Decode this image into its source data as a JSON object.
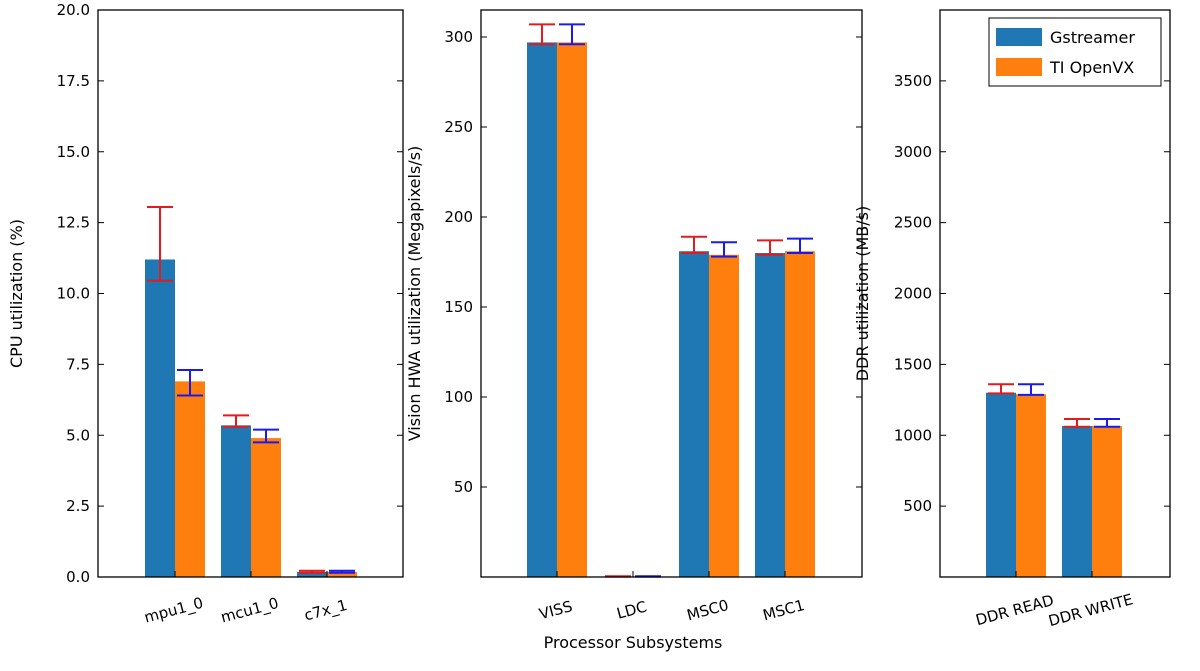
{
  "chart_data": {
    "type": "bar",
    "xlabel": "Processor Subsystems",
    "legend": {
      "placement": "top-right",
      "entries": [
        {
          "name": "Gstreamer",
          "color": "#1f77b4"
        },
        {
          "name": "TI OpenVX",
          "color": "#ff7f0e"
        }
      ]
    },
    "error_bar_colors": {
      "Gstreamer": "#e41a1c",
      "TI OpenVX": "#1a1aee"
    },
    "panels": [
      {
        "ylabel": "CPU utilization (%)",
        "ylim": [
          0,
          20
        ],
        "yticks": [
          0,
          2.5,
          5,
          7.5,
          10,
          12.5,
          15,
          17.5,
          20
        ],
        "ytick_labels": [
          "0.0",
          "2.5",
          "5.0",
          "7.5",
          "10.0",
          "12.5",
          "15.0",
          "17.5",
          "20.0"
        ],
        "yaxis_side": "left",
        "categories": [
          "mpu1_0",
          "mcu1_0",
          "c7x_1"
        ],
        "series": [
          {
            "name": "Gstreamer",
            "values": [
              11.2,
              5.35,
              0.18
            ],
            "err_low": [
              10.45,
              5.3,
              0.15
            ],
            "err_high": [
              13.05,
              5.7,
              0.22
            ]
          },
          {
            "name": "TI OpenVX",
            "values": [
              6.9,
              4.9,
              0.18
            ],
            "err_low": [
              6.4,
              4.75,
              0.15
            ],
            "err_high": [
              7.3,
              5.2,
              0.22
            ]
          }
        ]
      },
      {
        "ylabel": "Vision HWA utilization (Megapixels/s)",
        "ylim": [
          0,
          315
        ],
        "yticks": [
          50,
          100,
          150,
          200,
          250,
          300
        ],
        "ytick_labels": [
          "50",
          "100",
          "150",
          "200",
          "250",
          "300"
        ],
        "yaxis_side": "left",
        "categories": [
          "VISS",
          "LDC",
          "MSC0",
          "MSC1"
        ],
        "series": [
          {
            "name": "Gstreamer",
            "values": [
              297,
              0.3,
              181,
              180
            ],
            "err_low": [
              296,
              0.2,
              180,
              179
            ],
            "err_high": [
              307,
              0.4,
              189,
              187
            ]
          },
          {
            "name": "TI OpenVX",
            "values": [
              297,
              0.3,
              179,
              181
            ],
            "err_low": [
              296,
              0.2,
              178,
              180
            ],
            "err_high": [
              307,
              0.4,
              186,
              188
            ]
          }
        ]
      },
      {
        "ylabel": "DDR utilization (MB/s)",
        "ylim": [
          0,
          4000
        ],
        "yticks": [
          500,
          1000,
          1500,
          2000,
          2500,
          3000,
          3500
        ],
        "ytick_labels": [
          "500",
          "1000",
          "1500",
          "2000",
          "2500",
          "3000",
          "3500"
        ],
        "yaxis_side": "left",
        "categories": [
          "DDR READ",
          "DDR WRITE"
        ],
        "series": [
          {
            "name": "Gstreamer",
            "values": [
              1300,
              1065
            ],
            "err_low": [
              1295,
              1060
            ],
            "err_high": [
              1360,
              1115
            ]
          },
          {
            "name": "TI OpenVX",
            "values": [
              1290,
              1065
            ],
            "err_low": [
              1285,
              1060
            ],
            "err_high": [
              1360,
              1115
            ]
          }
        ]
      }
    ]
  }
}
